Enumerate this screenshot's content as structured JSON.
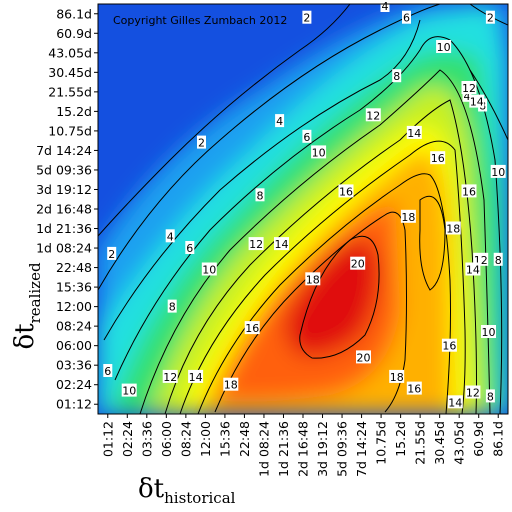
{
  "chart_data": {
    "type": "heatmap",
    "title": "",
    "copyright": "Copyright Gilles Zumbach 2012",
    "xlabel": {
      "main": "δt",
      "sub": "historical"
    },
    "ylabel": {
      "main": "δt",
      "sub": "realized"
    },
    "x_ticks": [
      "01:12",
      "02:24",
      "03:36",
      "06:00",
      "08:24",
      "12:00",
      "15:36",
      "22:48",
      "1d 08:24",
      "1d 21:36",
      "2d 16:48",
      "3d 19:12",
      "5d 09:36",
      "7d 14:24",
      "10.75d",
      "15.2d",
      "21.55d",
      "30.45d",
      "43.05d",
      "60.9d",
      "86.1d"
    ],
    "y_ticks": [
      "86.1d",
      "60.9d",
      "43.05d",
      "30.45d",
      "21.55d",
      "15.2d",
      "10.75d",
      "7d 14:24",
      "5d 09:36",
      "3d 19:12",
      "2d 16:48",
      "1d 21:36",
      "1d 08:24",
      "22:48",
      "15:36",
      "12:00",
      "08:24",
      "06:00",
      "03:36",
      "02:24",
      "01:12"
    ],
    "contour_levels": [
      2,
      4,
      6,
      8,
      10,
      12,
      14,
      16,
      18,
      20
    ],
    "colorscale": [
      "#1040d8",
      "#1aa0f0",
      "#22e0e0",
      "#30e070",
      "#c8f020",
      "#ffff00",
      "#ffb000",
      "#ff6010",
      "#e01010"
    ],
    "contour_labels": [
      {
        "text": "2",
        "xi": 4.8,
        "yi": 6.6
      },
      {
        "text": "2",
        "xi": 0.2,
        "yi": 12.3
      },
      {
        "text": "2",
        "xi": 10.2,
        "yi": 0.2
      },
      {
        "text": "2",
        "xi": 19.6,
        "yi": 0.2
      },
      {
        "text": "4",
        "xi": 8.8,
        "yi": 5.5
      },
      {
        "text": "4",
        "xi": 3.2,
        "yi": 11.4
      },
      {
        "text": "4",
        "xi": 14.2,
        "yi": -0.4
      },
      {
        "text": "4",
        "xi": 18.4,
        "yi": 4.2
      },
      {
        "text": "6",
        "xi": 10.2,
        "yi": 6.3
      },
      {
        "text": "6",
        "xi": 4.2,
        "yi": 12.0
      },
      {
        "text": "6",
        "xi": 15.3,
        "yi": 0.2
      },
      {
        "text": "6",
        "xi": 0.0,
        "yi": 18.3
      },
      {
        "text": "8",
        "xi": 7.8,
        "yi": 9.3
      },
      {
        "text": "8",
        "xi": 3.3,
        "yi": 15.0
      },
      {
        "text": "8",
        "xi": 14.8,
        "yi": 3.2
      },
      {
        "text": "8",
        "xi": 19.2,
        "yi": 4.7
      },
      {
        "text": "8",
        "xi": 20.0,
        "yi": 12.6
      },
      {
        "text": "8",
        "xi": 19.6,
        "yi": 19.6
      },
      {
        "text": "10",
        "xi": 5.2,
        "yi": 13.1
      },
      {
        "text": "10",
        "xi": 10.8,
        "yi": 7.1
      },
      {
        "text": "10",
        "xi": 17.2,
        "yi": 1.7
      },
      {
        "text": "10",
        "xi": 1.1,
        "yi": 19.3
      },
      {
        "text": "10",
        "xi": 20.0,
        "yi": 8.1
      },
      {
        "text": "10",
        "xi": 19.5,
        "yi": 16.3
      },
      {
        "text": "12",
        "xi": 7.6,
        "yi": 11.8
      },
      {
        "text": "12",
        "xi": 13.6,
        "yi": 5.2
      },
      {
        "text": "12",
        "xi": 3.2,
        "yi": 18.6
      },
      {
        "text": "12",
        "xi": 18.5,
        "yi": 3.8
      },
      {
        "text": "12",
        "xi": 19.1,
        "yi": 12.6
      },
      {
        "text": "12",
        "xi": 18.7,
        "yi": 19.4
      },
      {
        "text": "14",
        "xi": 8.9,
        "yi": 11.8
      },
      {
        "text": "14",
        "xi": 15.7,
        "yi": 6.1
      },
      {
        "text": "14",
        "xi": 4.5,
        "yi": 18.6
      },
      {
        "text": "14",
        "xi": 18.9,
        "yi": 4.5
      },
      {
        "text": "14",
        "xi": 18.7,
        "yi": 13.1
      },
      {
        "text": "14",
        "xi": 17.8,
        "yi": 19.9
      },
      {
        "text": "16",
        "xi": 12.2,
        "yi": 9.1
      },
      {
        "text": "16",
        "xi": 16.9,
        "yi": 7.4
      },
      {
        "text": "16",
        "xi": 7.4,
        "yi": 16.1
      },
      {
        "text": "16",
        "xi": 18.5,
        "yi": 9.1
      },
      {
        "text": "16",
        "xi": 17.5,
        "yi": 17.0
      },
      {
        "text": "16",
        "xi": 15.7,
        "yi": 19.2
      },
      {
        "text": "18",
        "xi": 10.5,
        "yi": 13.6
      },
      {
        "text": "18",
        "xi": 15.4,
        "yi": 10.4
      },
      {
        "text": "18",
        "xi": 17.7,
        "yi": 11.0
      },
      {
        "text": "18",
        "xi": 6.3,
        "yi": 19.0
      },
      {
        "text": "18",
        "xi": 14.8,
        "yi": 18.6
      },
      {
        "text": "20",
        "xi": 12.8,
        "yi": 12.8
      },
      {
        "text": "20",
        "xi": 13.1,
        "yi": 17.6
      }
    ]
  }
}
